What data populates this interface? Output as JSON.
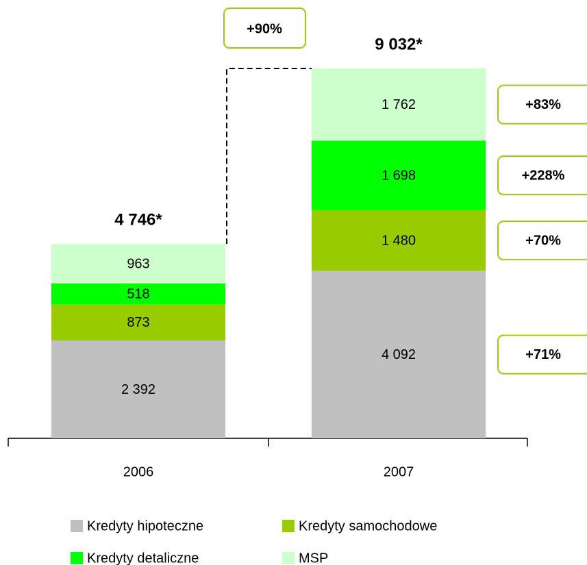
{
  "chart_data": {
    "type": "stacked_bar",
    "categories": [
      "2006",
      "2007"
    ],
    "series": [
      {
        "name": "Kredyty hipoteczne",
        "color": "#c0c0c0",
        "values": [
          2392,
          4092
        ],
        "value_labels": [
          "2 392",
          "4 092"
        ],
        "growth_label": "+71%"
      },
      {
        "name": "Kredyty samochodowe",
        "color": "#99cc00",
        "values": [
          873,
          1480
        ],
        "value_labels": [
          "873",
          "1 480"
        ],
        "growth_label": "+70%"
      },
      {
        "name": "Kredyty detaliczne",
        "color": "#00ff00",
        "values": [
          518,
          1698
        ],
        "value_labels": [
          "518",
          "1 698"
        ],
        "growth_label": "+228%"
      },
      {
        "name": "MSP",
        "color": "#ccffcc",
        "values": [
          963,
          1762
        ],
        "value_labels": [
          "963",
          "1 762"
        ],
        "growth_label": "+83%"
      }
    ],
    "totals": [
      4746,
      9032
    ],
    "total_labels": [
      "4 746*",
      "9 032*"
    ],
    "total_growth_label": "+90%"
  }
}
